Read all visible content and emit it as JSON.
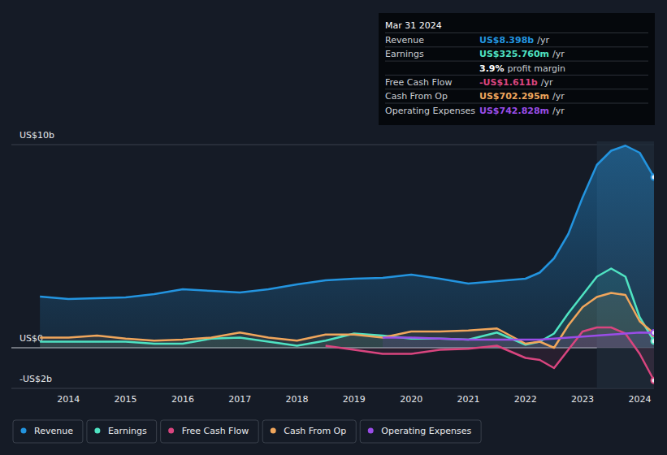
{
  "chart_data": {
    "type": "line",
    "x": [
      2013.5,
      2014,
      2014.5,
      2015,
      2015.5,
      2016,
      2016.5,
      2017,
      2017.5,
      2018,
      2018.5,
      2019,
      2019.5,
      2020,
      2020.5,
      2021,
      2021.5,
      2022,
      2022.25,
      2022.5,
      2022.75,
      2023,
      2023.25,
      2023.5,
      2023.75,
      2024,
      2024.25
    ],
    "xlim": [
      2013.0,
      2024.25
    ],
    "xticks": [
      2014,
      2015,
      2016,
      2017,
      2018,
      2019,
      2020,
      2021,
      2022,
      2023,
      2024
    ],
    "ylim": [
      -2,
      10
    ],
    "yticks": [
      {
        "value": -2,
        "label": "-US$2b"
      },
      {
        "value": 0,
        "label": "US$0"
      },
      {
        "value": 10,
        "label": "US$10b"
      }
    ],
    "grid": true,
    "legend": "bottom",
    "series": [
      {
        "name": "Revenue",
        "color": "#2394df",
        "values": [
          2.52,
          2.4,
          2.44,
          2.48,
          2.64,
          2.88,
          2.8,
          2.72,
          2.88,
          3.12,
          3.32,
          3.4,
          3.44,
          3.6,
          3.4,
          3.16,
          3.28,
          3.4,
          3.7,
          4.4,
          5.6,
          7.4,
          9.0,
          9.7,
          9.95,
          9.6,
          8.4
        ]
      },
      {
        "name": "Earnings",
        "color": "#4fe3c2",
        "values": [
          0.3,
          0.3,
          0.3,
          0.3,
          0.2,
          0.2,
          0.45,
          0.5,
          0.3,
          0.1,
          0.35,
          0.7,
          0.6,
          0.45,
          0.45,
          0.4,
          0.75,
          0.15,
          0.3,
          0.7,
          1.7,
          2.6,
          3.5,
          3.9,
          3.5,
          1.5,
          0.33
        ]
      },
      {
        "name": "Free Cash Flow",
        "color": "#d9457f",
        "values": [
          null,
          null,
          null,
          null,
          null,
          null,
          null,
          null,
          null,
          null,
          0.1,
          -0.1,
          -0.3,
          -0.3,
          -0.1,
          -0.05,
          0.1,
          -0.5,
          -0.6,
          -1.0,
          -0.1,
          0.8,
          1.0,
          1.0,
          0.7,
          -0.3,
          -1.611
        ]
      },
      {
        "name": "Cash From Op",
        "color": "#f0a65c",
        "values": [
          0.5,
          0.5,
          0.6,
          0.45,
          0.35,
          0.4,
          0.5,
          0.75,
          0.5,
          0.35,
          0.65,
          0.65,
          0.5,
          0.8,
          0.8,
          0.85,
          0.95,
          0.2,
          0.3,
          0.0,
          1.1,
          2.0,
          2.5,
          2.7,
          2.6,
          1.3,
          0.702
        ]
      },
      {
        "name": "Operating Expenses",
        "color": "#9a4de8",
        "values": [
          null,
          null,
          null,
          null,
          null,
          null,
          null,
          null,
          null,
          null,
          null,
          null,
          0.5,
          0.5,
          0.45,
          0.4,
          0.4,
          0.4,
          0.4,
          0.45,
          0.5,
          0.55,
          0.6,
          0.65,
          0.7,
          0.75,
          0.743
        ]
      }
    ],
    "annotations": {
      "title": "Mar 31 2024",
      "rows": [
        {
          "label": "Revenue",
          "value": "US$8.398b",
          "unit": "/yr"
        },
        {
          "label": "Earnings",
          "value": "US$325.760m",
          "unit": "/yr"
        },
        {
          "value": "3.9%",
          "unit": "profit margin"
        },
        {
          "label": "Free Cash Flow",
          "value": "-US$1.611b",
          "unit": "/yr"
        },
        {
          "label": "Cash From Op",
          "value": "US$702.295m",
          "unit": "/yr"
        },
        {
          "label": "Operating Expenses",
          "value": "US$742.828m",
          "unit": "/yr"
        }
      ]
    }
  }
}
